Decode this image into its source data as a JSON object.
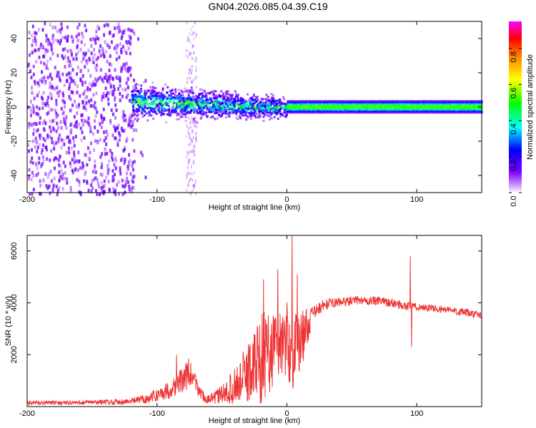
{
  "title": "GN04.2026.085.04.39.C19",
  "chart_data": [
    {
      "type": "heatmap",
      "xlabel": "Height of straight line (km)",
      "ylabel": "Frequency (Hz)",
      "xlim": [
        -200,
        150
      ],
      "ylim": [
        -50,
        50
      ],
      "xticks": [
        -200,
        -100,
        0,
        100
      ],
      "xtick_labels": [
        "-200",
        "-100",
        "0",
        "100"
      ],
      "yticks": [
        -40,
        -20,
        0,
        20,
        40
      ],
      "ytick_labels": [
        "-40",
        "-20",
        "0",
        "20",
        "40"
      ],
      "colorbar": {
        "label": "Normalized spectral amplitude",
        "range": [
          0,
          0.95
        ],
        "ticks": [
          0,
          0.2,
          0.4,
          0.6,
          0.8
        ],
        "tick_labels": [
          "0.0",
          "0.2",
          "0.4",
          "0.6",
          "0.8"
        ]
      },
      "features": [
        {
          "x_range": [
            -200,
            -118
          ],
          "y_range": [
            -50,
            50
          ],
          "amplitude": 0.12,
          "description_level": "broadband noise"
        },
        {
          "x_range": [
            -78,
            -70
          ],
          "y_range": [
            -50,
            50
          ],
          "amplitude": 0.05
        },
        {
          "x_range": [
            -120,
            0
          ],
          "center_freq": 0,
          "width_hz": 8,
          "amplitude": 0.5
        },
        {
          "x_range": [
            0,
            150
          ],
          "center_freq": 0,
          "width_hz": 3,
          "amplitude": 0.55
        }
      ]
    },
    {
      "type": "line",
      "xlabel": "Height of straight line (km)",
      "ylabel": "SNR (10 * v/v)",
      "xlim": [
        -200,
        150
      ],
      "ylim": [
        0,
        6600
      ],
      "xticks": [
        -200,
        -100,
        0,
        100
      ],
      "xtick_labels": [
        "-200",
        "-100",
        "0",
        "100"
      ],
      "yticks": [
        2000,
        4000,
        6000
      ],
      "ytick_labels": [
        "2000",
        "4000",
        "6000"
      ],
      "color": "#ee3333",
      "envelope": {
        "x": [
          -200,
          -160,
          -120,
          -105,
          -90,
          -80,
          -75,
          -68,
          -62,
          -55,
          -45,
          -38,
          -30,
          -25,
          -20,
          -15,
          -10,
          -5,
          0,
          3,
          8,
          12,
          16,
          20,
          28,
          35,
          45,
          55,
          65,
          75,
          85,
          92,
          100,
          110,
          120,
          130,
          140,
          150
        ],
        "y": [
          150,
          150,
          200,
          350,
          650,
          1050,
          1300,
          650,
          250,
          350,
          600,
          900,
          1300,
          1600,
          1900,
          2100,
          2300,
          2500,
          2600,
          2000,
          2300,
          2700,
          3100,
          3600,
          3900,
          4000,
          4050,
          4100,
          4080,
          4050,
          3950,
          3880,
          3850,
          3800,
          3750,
          3680,
          3600,
          3500
        ],
        "noise": [
          80,
          80,
          120,
          200,
          350,
          500,
          600,
          300,
          150,
          250,
          500,
          800,
          1200,
          1500,
          1800,
          1700,
          1600,
          1500,
          1500,
          1500,
          1300,
          1100,
          700,
          250,
          220,
          180,
          170,
          170,
          170,
          170,
          170,
          170,
          150,
          150,
          150,
          150,
          150,
          150
        ]
      },
      "spikes": [
        {
          "x": 4,
          "y": 6600
        },
        {
          "x": -18,
          "y": 4900
        },
        {
          "x": -7,
          "y": 5300
        },
        {
          "x": 8,
          "y": 5100
        },
        {
          "x": 95,
          "y": 5800
        },
        {
          "x": 96,
          "y": 2300
        },
        {
          "x": -85,
          "y": 2000
        }
      ]
    }
  ]
}
